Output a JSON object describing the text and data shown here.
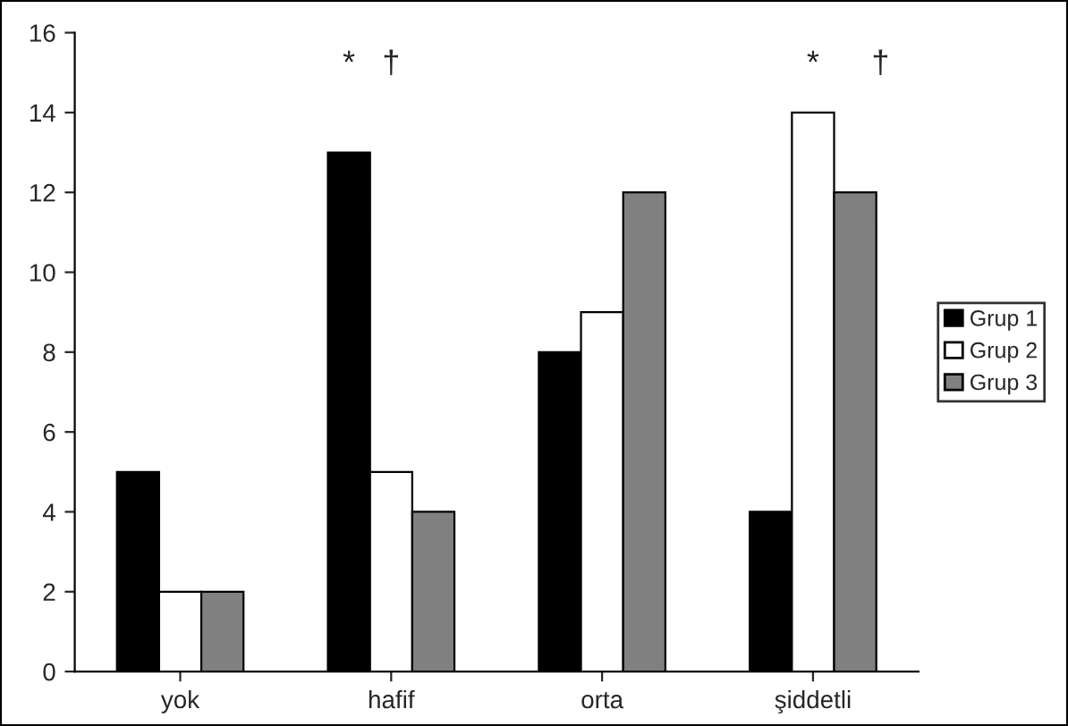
{
  "chart_data": {
    "type": "bar",
    "categories": [
      "yok",
      "hafif",
      "orta",
      "şiddetli"
    ],
    "series": [
      {
        "name": "Grup 1",
        "color": "#000000",
        "values": [
          5,
          13,
          8,
          4
        ]
      },
      {
        "name": "Grup 2",
        "color": "#ffffff",
        "values": [
          2,
          5,
          9,
          14
        ]
      },
      {
        "name": "Grup 3",
        "color": "#808080",
        "values": [
          2,
          4,
          12,
          12
        ]
      }
    ],
    "ylim": [
      0,
      16
    ],
    "yticks": [
      0,
      2,
      4,
      6,
      8,
      10,
      12,
      14,
      16
    ],
    "annotations": [
      "*",
      "†",
      "*",
      "†"
    ],
    "grid": false,
    "legend": "right"
  }
}
